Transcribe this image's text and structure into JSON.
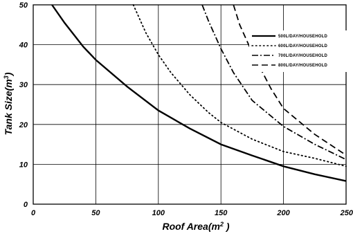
{
  "chart_data": {
    "type": "line",
    "xlabel": "Roof Area(m",
    "xlabel_sup": "2",
    "xlabel_tail": " )",
    "ylabel": "Tank Size(m",
    "ylabel_sup": "3",
    "ylabel_tail": ")",
    "xlim": [
      0,
      250
    ],
    "ylim": [
      0,
      50
    ],
    "xticks": [
      "0",
      "50",
      "100",
      "150",
      "200",
      "250"
    ],
    "yticks": [
      "0",
      "10",
      "20",
      "30",
      "40",
      "50"
    ],
    "grid": true,
    "legend_position": "top-right",
    "series": [
      {
        "name": "500L/DAY/HOUSEHOLD",
        "style": "solid",
        "points": [
          [
            15,
            50
          ],
          [
            25,
            45.5
          ],
          [
            40,
            39.5
          ],
          [
            50,
            36.2
          ],
          [
            75,
            29.5
          ],
          [
            100,
            23.5
          ],
          [
            125,
            19.0
          ],
          [
            150,
            15.0
          ],
          [
            175,
            12.2
          ],
          [
            200,
            9.5
          ],
          [
            225,
            7.5
          ],
          [
            250,
            5.8
          ]
        ]
      },
      {
        "name": "600L/DAY/HOUSEHOLD",
        "style": "dotted",
        "points": [
          [
            80,
            50
          ],
          [
            90,
            43
          ],
          [
            100,
            37.5
          ],
          [
            110,
            33
          ],
          [
            125,
            27.5
          ],
          [
            140,
            23
          ],
          [
            150,
            20.5
          ],
          [
            175,
            16.3
          ],
          [
            200,
            13.2
          ],
          [
            225,
            11.5
          ],
          [
            250,
            9.5
          ]
        ]
      },
      {
        "name": "700L/DAY/HOUSEHOLD",
        "style": "dashdot",
        "points": [
          [
            135,
            50
          ],
          [
            140,
            46
          ],
          [
            150,
            39
          ],
          [
            160,
            33
          ],
          [
            175,
            26
          ],
          [
            200,
            19.5
          ],
          [
            225,
            15.0
          ],
          [
            250,
            11.2
          ]
        ]
      },
      {
        "name": "800L/DAY/HOUSEHOLD",
        "style": "dashed",
        "points": [
          [
            160,
            50
          ],
          [
            165,
            45
          ],
          [
            175,
            38
          ],
          [
            190,
            29
          ],
          [
            200,
            24
          ],
          [
            225,
            17.5
          ],
          [
            250,
            12.3
          ]
        ]
      }
    ]
  }
}
